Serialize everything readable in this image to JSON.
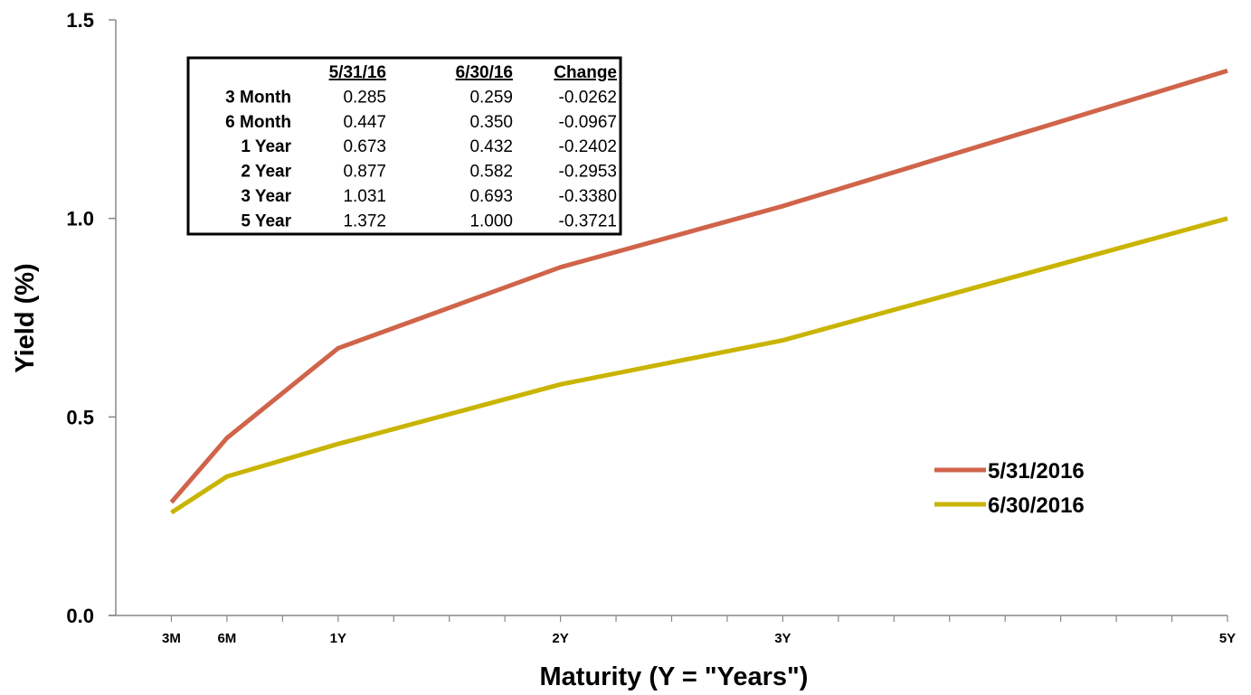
{
  "chart_data": {
    "type": "line",
    "xlabel": "Maturity (Y = \"Years\")",
    "ylabel": "Yield (%)",
    "ylim": [
      0,
      1.5
    ],
    "yticks": [
      "0.0",
      "0.5",
      "1.0",
      "1.5"
    ],
    "xlim_months": [
      0,
      60
    ],
    "x": [
      3,
      6,
      12,
      24,
      36,
      60
    ],
    "x_tick_labels": [
      "3M",
      "6M",
      "1Y",
      "2Y",
      "3Y",
      "5Y"
    ],
    "grid": false,
    "legend_position": "right",
    "series": [
      {
        "name": "5/31/2016",
        "color": "#d0644a",
        "values": [
          0.285,
          0.447,
          0.673,
          0.877,
          1.031,
          1.372
        ]
      },
      {
        "name": "6/30/2016",
        "color": "#c9b400",
        "values": [
          0.259,
          0.35,
          0.432,
          0.582,
          0.693,
          1.0
        ]
      }
    ],
    "table": {
      "headers": [
        "5/31/16",
        "6/30/16",
        "Change"
      ],
      "rows": [
        {
          "label": "3 Month",
          "values": [
            "0.285",
            "0.259",
            "-0.0262"
          ]
        },
        {
          "label": "6 Month",
          "values": [
            "0.447",
            "0.350",
            "-0.0967"
          ]
        },
        {
          "label": "1 Year",
          "values": [
            "0.673",
            "0.432",
            "-0.2402"
          ]
        },
        {
          "label": "2 Year",
          "values": [
            "0.877",
            "0.582",
            "-0.2953"
          ]
        },
        {
          "label": "3 Year",
          "values": [
            "1.031",
            "0.693",
            "-0.3380"
          ]
        },
        {
          "label": "5 Year",
          "values": [
            "1.372",
            "1.000",
            "-0.3721"
          ]
        }
      ]
    }
  }
}
